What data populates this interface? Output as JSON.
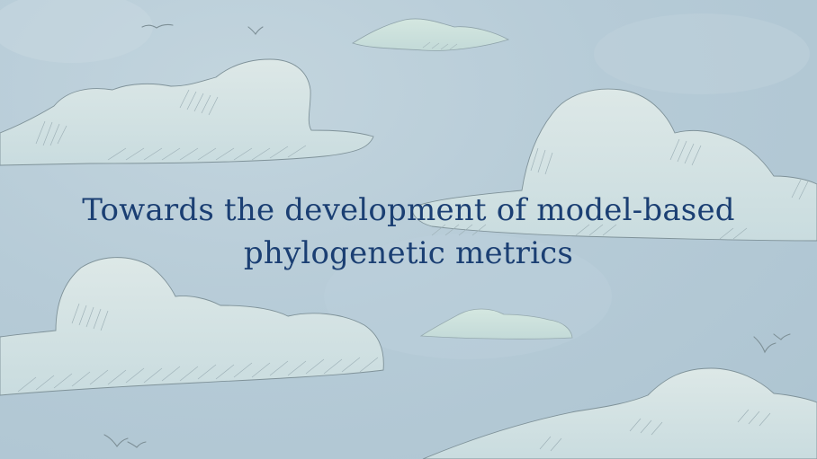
{
  "slide": {
    "title": "Towards the development of model-based phylogenetic metrics",
    "background_color": "#b7ccd8",
    "cloud_color": "#d3e2e3",
    "text_color": "#1b3f73"
  },
  "decorations": {
    "icons": [
      "cloud-icon",
      "bird-icon"
    ]
  }
}
